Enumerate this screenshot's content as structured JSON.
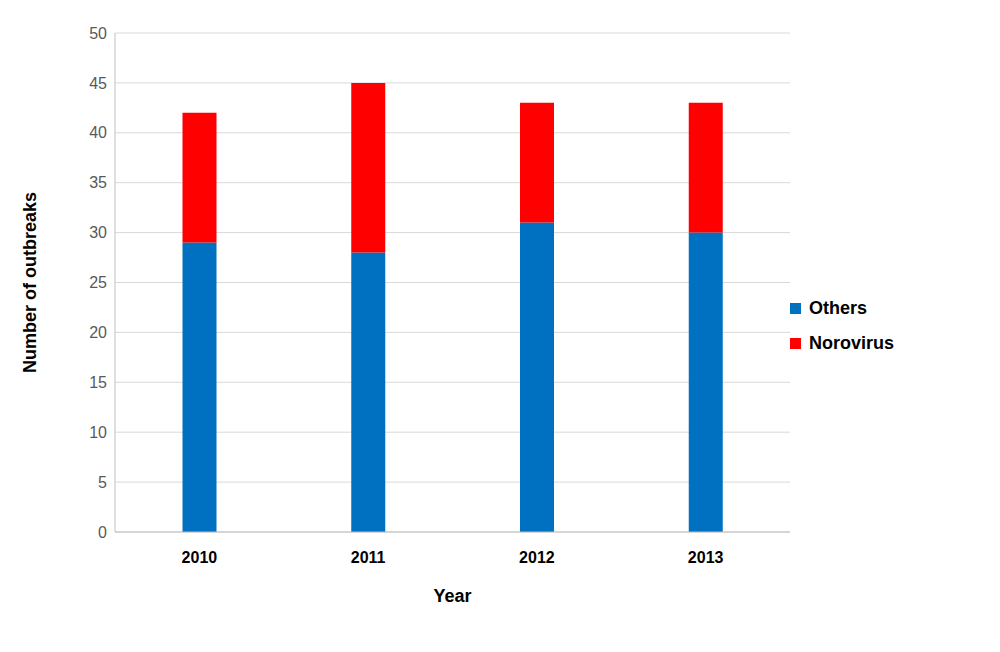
{
  "chart_data": {
    "type": "bar",
    "stacked": true,
    "x_label": "Year",
    "y_label": "Number of outbreaks",
    "categories": [
      "2010",
      "2011",
      "2012",
      "2013"
    ],
    "series": [
      {
        "name": "Others",
        "color": "#0070c0",
        "values": [
          29,
          28,
          31,
          30
        ]
      },
      {
        "name": "Norovirus",
        "color": "#ff0000",
        "values": [
          13,
          17,
          12,
          13
        ]
      }
    ],
    "ylim": [
      0,
      50
    ],
    "yticks": [
      0,
      5,
      10,
      15,
      20,
      25,
      30,
      35,
      40,
      45,
      50
    ],
    "grid": true,
    "legend": "right"
  }
}
